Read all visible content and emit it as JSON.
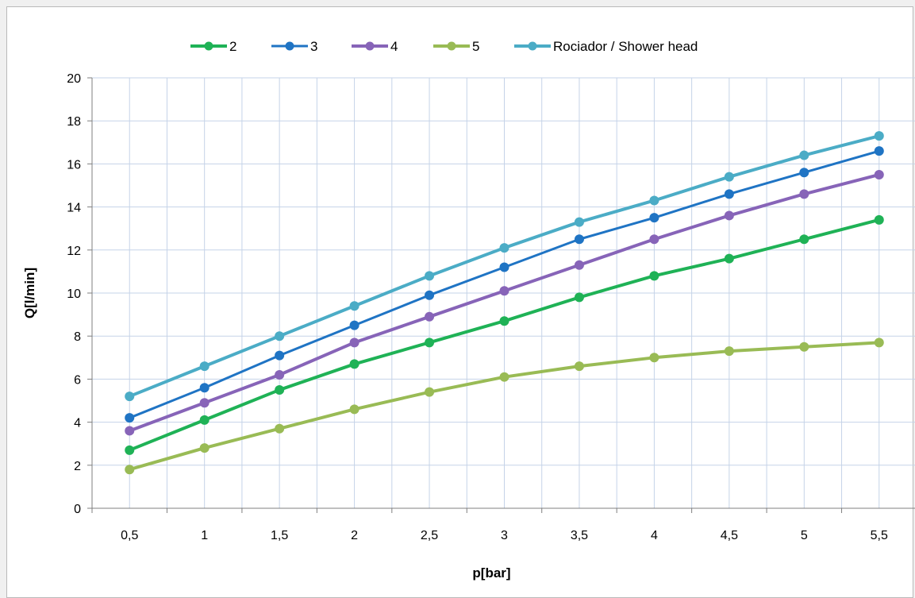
{
  "chart_data": {
    "type": "line",
    "xlabel": "p[bar]",
    "ylabel": "Q[l/min]",
    "x": [
      "0,5",
      "1",
      "1,5",
      "2",
      "2,5",
      "3",
      "3,5",
      "4",
      "4,5",
      "5",
      "5,5"
    ],
    "ylim": [
      0,
      20
    ],
    "yticks": [
      "0",
      "2",
      "4",
      "6",
      "8",
      "10",
      "12",
      "14",
      "16",
      "18",
      "20"
    ],
    "grid": true,
    "legend_position": "top",
    "series": [
      {
        "name": "2",
        "color": "#1fb256",
        "values": [
          2.7,
          4.1,
          5.5,
          6.7,
          7.7,
          8.7,
          9.8,
          10.8,
          11.6,
          12.5,
          13.4
        ]
      },
      {
        "name": "3",
        "color": "#1f74c4",
        "values": [
          4.2,
          5.6,
          7.1,
          8.5,
          9.9,
          11.2,
          12.5,
          13.5,
          14.6,
          15.6,
          16.6
        ]
      },
      {
        "name": "4",
        "color": "#8764b8",
        "values": [
          3.6,
          4.9,
          6.2,
          7.7,
          8.9,
          10.1,
          11.3,
          12.5,
          13.6,
          14.6,
          15.5
        ]
      },
      {
        "name": "5",
        "color": "#99bb55",
        "values": [
          1.8,
          2.8,
          3.7,
          4.6,
          5.4,
          6.1,
          6.6,
          7.0,
          7.3,
          7.5,
          7.7
        ]
      },
      {
        "name": "Rociador / Shower head",
        "color": "#4bacc6",
        "values": [
          5.2,
          6.6,
          8.0,
          9.4,
          10.8,
          12.1,
          13.3,
          14.3,
          15.4,
          16.4,
          17.3
        ]
      }
    ]
  }
}
